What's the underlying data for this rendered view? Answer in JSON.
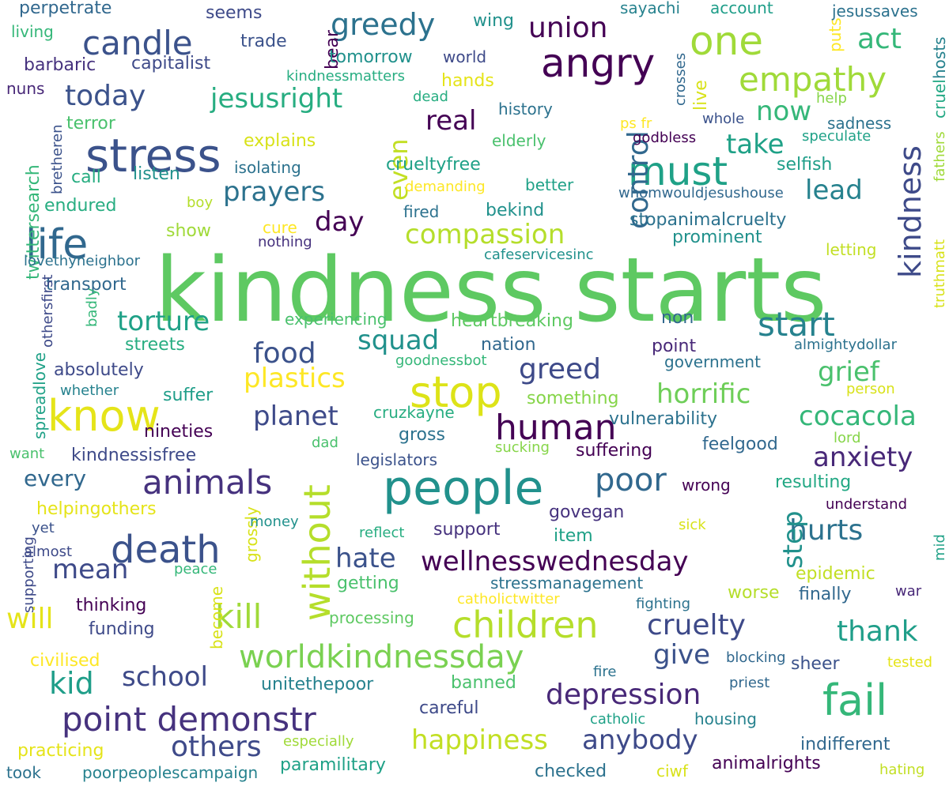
{
  "colors": {
    "background": "#ffffff",
    "palette": [
      "#440154",
      "#46327e",
      "#365c8d",
      "#277f8e",
      "#1fa187",
      "#4ac16d",
      "#a0da39",
      "#fde725"
    ]
  },
  "words": [
    {
      "text": "kindness starts",
      "color": "#5ec962"
    },
    {
      "text": "people",
      "color": "#21918c"
    },
    {
      "text": "stop",
      "color": "#dde318"
    },
    {
      "text": "stress",
      "color": "#3b528b"
    },
    {
      "text": "know",
      "color": "#e5e419"
    },
    {
      "text": "life",
      "color": "#31688e"
    },
    {
      "text": "death",
      "color": "#3b528b"
    },
    {
      "text": "angry",
      "color": "#440154"
    },
    {
      "text": "must",
      "color": "#1fa187"
    },
    {
      "text": "one",
      "color": "#a0da39"
    },
    {
      "text": "fail",
      "color": "#35b779"
    },
    {
      "text": "children",
      "color": "#b5de2b"
    },
    {
      "text": "worldkindnessday",
      "color": "#7ad151"
    },
    {
      "text": "animals",
      "color": "#46327e"
    },
    {
      "text": "human",
      "color": "#440154"
    },
    {
      "text": "point demonstr",
      "color": "#46327e"
    },
    {
      "text": "candle",
      "color": "#3b528b"
    },
    {
      "text": "empathy",
      "color": "#a0da39"
    },
    {
      "text": "without",
      "color": "#b5de2b"
    },
    {
      "text": "kill",
      "color": "#a0da39"
    },
    {
      "text": "start",
      "color": "#26828e"
    },
    {
      "text": "greedy",
      "color": "#2c728e"
    },
    {
      "text": "union",
      "color": "#440154"
    },
    {
      "text": "act",
      "color": "#35b779"
    },
    {
      "text": "today",
      "color": "#3b528b"
    },
    {
      "text": "jesusright",
      "color": "#27ad81"
    },
    {
      "text": "compassion",
      "color": "#b5de2b"
    },
    {
      "text": "prayers",
      "color": "#2c728e"
    },
    {
      "text": "plastics",
      "color": "#fde725"
    },
    {
      "text": "horrific",
      "color": "#6ece58"
    },
    {
      "text": "poor",
      "color": "#31688e"
    },
    {
      "text": "wellnesswednesday",
      "color": "#440154"
    },
    {
      "text": "depression",
      "color": "#482878"
    },
    {
      "text": "happiness",
      "color": "#c2df23"
    },
    {
      "text": "anybody",
      "color": "#3e4a89"
    },
    {
      "text": "others",
      "color": "#3e4a89"
    },
    {
      "text": "school",
      "color": "#3e4a89"
    },
    {
      "text": "kid",
      "color": "#1f9e89"
    },
    {
      "text": "mean",
      "color": "#3e4a89"
    },
    {
      "text": "will",
      "color": "#e5e419"
    },
    {
      "text": "cruelty",
      "color": "#3e4a89"
    },
    {
      "text": "thank",
      "color": "#1f9e89"
    },
    {
      "text": "give",
      "color": "#3b528b"
    },
    {
      "text": "hurts",
      "color": "#2c728e"
    },
    {
      "text": "anxiety",
      "color": "#482878"
    },
    {
      "text": "cocacola",
      "color": "#35b779"
    },
    {
      "text": "grief",
      "color": "#4ac16d"
    },
    {
      "text": "kindness",
      "color": "#3e4a89"
    },
    {
      "text": "lead",
      "color": "#26828e"
    },
    {
      "text": "take",
      "color": "#1fa187"
    },
    {
      "text": "now",
      "color": "#35b779"
    },
    {
      "text": "control",
      "color": "#31688e"
    },
    {
      "text": "real",
      "color": "#440154"
    },
    {
      "text": "greed",
      "color": "#3e4a89"
    },
    {
      "text": "squad",
      "color": "#21918c"
    },
    {
      "text": "food",
      "color": "#3b528b"
    },
    {
      "text": "planet",
      "color": "#3e4a89"
    },
    {
      "text": "torture",
      "color": "#1fa187"
    },
    {
      "text": "day",
      "color": "#440154"
    },
    {
      "text": "hate",
      "color": "#3b528b"
    },
    {
      "text": "step",
      "color": "#21918c"
    },
    {
      "text": "even",
      "color": "#c2df23"
    }
  ],
  "small_words": [
    {
      "text": "perpetrate",
      "color": "#31688e"
    },
    {
      "text": "seems",
      "color": "#3e4a89"
    },
    {
      "text": "trade",
      "color": "#3b528b"
    },
    {
      "text": "bear",
      "color": "#440154"
    },
    {
      "text": "wing",
      "color": "#21918c"
    },
    {
      "text": "sayachi",
      "color": "#26828e"
    },
    {
      "text": "account",
      "color": "#1f9e89"
    },
    {
      "text": "puts",
      "color": "#fde725"
    },
    {
      "text": "jesussaves",
      "color": "#2c728e"
    },
    {
      "text": "living",
      "color": "#35b779"
    },
    {
      "text": "barbaric",
      "color": "#46327e"
    },
    {
      "text": "capitalist",
      "color": "#3e4a89"
    },
    {
      "text": "tomorrow",
      "color": "#21918c"
    },
    {
      "text": "world",
      "color": "#3e4a89"
    },
    {
      "text": "kindnessmatters",
      "color": "#27ad81"
    },
    {
      "text": "hands",
      "color": "#e5e419"
    },
    {
      "text": "crosses",
      "color": "#31688e"
    },
    {
      "text": "live",
      "color": "#d8e219"
    },
    {
      "text": "cruel",
      "color": "#22a884"
    },
    {
      "text": "hosts",
      "color": "#26828e"
    },
    {
      "text": "nuns",
      "color": "#482878"
    },
    {
      "text": "help",
      "color": "#86d549"
    },
    {
      "text": "dead",
      "color": "#27ad81"
    },
    {
      "text": "history",
      "color": "#2c728e"
    },
    {
      "text": "whole",
      "color": "#3b528b"
    },
    {
      "text": "sadness",
      "color": "#2c728e"
    },
    {
      "text": "terror",
      "color": "#4ac16d"
    },
    {
      "text": "ps fr",
      "color": "#fde725"
    },
    {
      "text": "godbless",
      "color": "#440154"
    },
    {
      "text": "speculate",
      "color": "#1fa187"
    },
    {
      "text": "twittersearch",
      "color": "#35b779"
    },
    {
      "text": "bretheren",
      "color": "#3b528b"
    },
    {
      "text": "explains",
      "color": "#d8e219"
    },
    {
      "text": "elderly",
      "color": "#4ac16d"
    },
    {
      "text": "fathers",
      "color": "#a0da39"
    },
    {
      "text": "call",
      "color": "#27ad81"
    },
    {
      "text": "listen",
      "color": "#21918c"
    },
    {
      "text": "isolating",
      "color": "#2c728e"
    },
    {
      "text": "crueltyfree",
      "color": "#1fa187"
    },
    {
      "text": "selfish",
      "color": "#1f9e89"
    },
    {
      "text": "demanding",
      "color": "#fde725"
    },
    {
      "text": "better",
      "color": "#1fa187"
    },
    {
      "text": "whomwouldjesushouse",
      "color": "#31688e"
    },
    {
      "text": "endured",
      "color": "#27ad81"
    },
    {
      "text": "boy",
      "color": "#b5de2b"
    },
    {
      "text": "fired",
      "color": "#2c728e"
    },
    {
      "text": "bekind",
      "color": "#21918c"
    },
    {
      "text": "stopanimalcruelty",
      "color": "#2c728e"
    },
    {
      "text": "show",
      "color": "#a0da39"
    },
    {
      "text": "cure",
      "color": "#fde725"
    },
    {
      "text": "nothing",
      "color": "#46327e"
    },
    {
      "text": "prominent",
      "color": "#21918c"
    },
    {
      "text": "truthmatt",
      "color": "#d8e219"
    },
    {
      "text": "lovethyneighbor",
      "color": "#2c728e"
    },
    {
      "text": "cafeservicesinc",
      "color": "#21918c"
    },
    {
      "text": "letting",
      "color": "#c2df23"
    },
    {
      "text": "transport",
      "color": "#31688e"
    },
    {
      "text": "othersfirst",
      "color": "#3e4a89"
    },
    {
      "text": "badly",
      "color": "#35b779"
    },
    {
      "text": "spreadlove",
      "color": "#1fa187"
    },
    {
      "text": "experiencing",
      "color": "#4ac16d"
    },
    {
      "text": "heartbreaking",
      "color": "#5ec962"
    },
    {
      "text": "non",
      "color": "#31688e"
    },
    {
      "text": "almightydollar",
      "color": "#2c728e"
    },
    {
      "text": "streets",
      "color": "#27ad81"
    },
    {
      "text": "nation",
      "color": "#31688e"
    },
    {
      "text": "point",
      "color": "#482878"
    },
    {
      "text": "absolutely",
      "color": "#3e4a89"
    },
    {
      "text": "goodnessbot",
      "color": "#35b779"
    },
    {
      "text": "government",
      "color": "#2c728e"
    },
    {
      "text": "whether",
      "color": "#26828e"
    },
    {
      "text": "suffer",
      "color": "#1f9e89"
    },
    {
      "text": "something",
      "color": "#86d549"
    },
    {
      "text": "person",
      "color": "#d8e219"
    },
    {
      "text": "cruzkayne",
      "color": "#27ad81"
    },
    {
      "text": "vulnerability",
      "color": "#2c728e"
    },
    {
      "text": "nineties",
      "color": "#440154"
    },
    {
      "text": "gross",
      "color": "#2c728e"
    },
    {
      "text": "dad",
      "color": "#4ac16d"
    },
    {
      "text": "lord",
      "color": "#86d549"
    },
    {
      "text": "want",
      "color": "#4ac16d"
    },
    {
      "text": "kindnessisfree",
      "color": "#3e4a89"
    },
    {
      "text": "legislators",
      "color": "#3b528b"
    },
    {
      "text": "sucking",
      "color": "#86d549"
    },
    {
      "text": "suffering",
      "color": "#440154"
    },
    {
      "text": "feelgood",
      "color": "#31688e"
    },
    {
      "text": "every",
      "color": "#31688e"
    },
    {
      "text": "resulting",
      "color": "#22a884"
    },
    {
      "text": "wrong",
      "color": "#440154"
    },
    {
      "text": "helpingothers",
      "color": "#e5e419"
    },
    {
      "text": "grossly",
      "color": "#d8e219"
    },
    {
      "text": "govegan",
      "color": "#46327e"
    },
    {
      "text": "understand",
      "color": "#440154"
    },
    {
      "text": "supporting",
      "color": "#3e4a89"
    },
    {
      "text": "yet",
      "color": "#3b528b"
    },
    {
      "text": "money",
      "color": "#21918c"
    },
    {
      "text": "reflect",
      "color": "#27ad81"
    },
    {
      "text": "support",
      "color": "#46327e"
    },
    {
      "text": "sick",
      "color": "#d8e219"
    },
    {
      "text": "item",
      "color": "#1fa187"
    },
    {
      "text": "mid",
      "color": "#1fa187"
    },
    {
      "text": "almost",
      "color": "#3e4a89"
    },
    {
      "text": "peace",
      "color": "#35b779"
    },
    {
      "text": "epidemic",
      "color": "#c2df23"
    },
    {
      "text": "getting",
      "color": "#4ac16d"
    },
    {
      "text": "stressmanagement",
      "color": "#2c728e"
    },
    {
      "text": "become",
      "color": "#d8e219"
    },
    {
      "text": "worse",
      "color": "#b5de2b"
    },
    {
      "text": "finally",
      "color": "#31688e"
    },
    {
      "text": "war",
      "color": "#482878"
    },
    {
      "text": "thinking",
      "color": "#440154"
    },
    {
      "text": "catholictwitter",
      "color": "#fde725"
    },
    {
      "text": "fighting",
      "color": "#2c728e"
    },
    {
      "text": "funding",
      "color": "#3e4a89"
    },
    {
      "text": "processing",
      "color": "#5ec962"
    },
    {
      "text": "civilised",
      "color": "#fde725"
    },
    {
      "text": "blocking",
      "color": "#31688e"
    },
    {
      "text": "sheer",
      "color": "#3b528b"
    },
    {
      "text": "tested",
      "color": "#e5e419"
    },
    {
      "text": "unitethepoor",
      "color": "#26828e"
    },
    {
      "text": "banned",
      "color": "#4ac16d"
    },
    {
      "text": "fire",
      "color": "#2c728e"
    },
    {
      "text": "priest",
      "color": "#31688e"
    },
    {
      "text": "careful",
      "color": "#3e4a89"
    },
    {
      "text": "catholic",
      "color": "#1fa187"
    },
    {
      "text": "housing",
      "color": "#26828e"
    },
    {
      "text": "practicing",
      "color": "#e5e419"
    },
    {
      "text": "especially",
      "color": "#a0da39"
    },
    {
      "text": "indifferent",
      "color": "#31688e"
    },
    {
      "text": "took",
      "color": "#2c728e"
    },
    {
      "text": "poorpeoplescampaign",
      "color": "#26828e"
    },
    {
      "text": "paramilitary",
      "color": "#1fa187"
    },
    {
      "text": "checked",
      "color": "#2c728e"
    },
    {
      "text": "ciwf",
      "color": "#d8e219"
    },
    {
      "text": "animalrights",
      "color": "#440154"
    },
    {
      "text": "hating",
      "color": "#c2df23"
    }
  ]
}
